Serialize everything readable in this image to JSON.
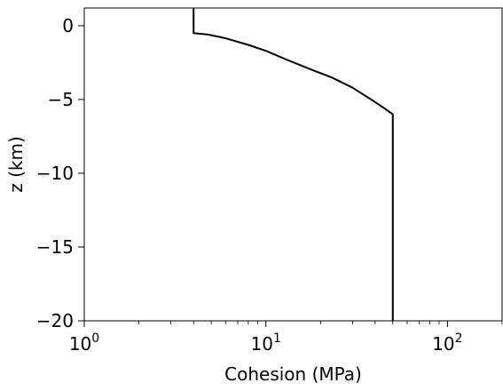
{
  "chart_data": {
    "type": "line",
    "title": "",
    "xlabel": "Cohesion (MPa)",
    "ylabel": "z (km)",
    "xscale": "log",
    "xlim": [
      1,
      200
    ],
    "ylim": [
      -20,
      1.2
    ],
    "grid": false,
    "legend": "none",
    "x_ticks": [
      {
        "value": 1,
        "base": "10",
        "exp": "0"
      },
      {
        "value": 10,
        "base": "10",
        "exp": "1"
      },
      {
        "value": 100,
        "base": "10",
        "exp": "2"
      }
    ],
    "y_ticks": [
      {
        "value": 0,
        "label": "0"
      },
      {
        "value": -5,
        "label": "−5"
      },
      {
        "value": -10,
        "label": "−10"
      },
      {
        "value": -15,
        "label": "−15"
      },
      {
        "value": -20,
        "label": "−20"
      }
    ],
    "series": [
      {
        "color": "#000000",
        "points": [
          {
            "x": 4.0,
            "y": 1.2
          },
          {
            "x": 4.0,
            "y": -0.5
          },
          {
            "x": 4.8,
            "y": -0.6
          },
          {
            "x": 6.0,
            "y": -0.85
          },
          {
            "x": 8.0,
            "y": -1.3
          },
          {
            "x": 10.0,
            "y": -1.7
          },
          {
            "x": 13.0,
            "y": -2.3
          },
          {
            "x": 18.0,
            "y": -3.0
          },
          {
            "x": 23.0,
            "y": -3.5
          },
          {
            "x": 30.0,
            "y": -4.2
          },
          {
            "x": 38.0,
            "y": -5.0
          },
          {
            "x": 45.0,
            "y": -5.6
          },
          {
            "x": 50.0,
            "y": -6.0
          },
          {
            "x": 50.0,
            "y": -20.0
          }
        ]
      }
    ]
  }
}
